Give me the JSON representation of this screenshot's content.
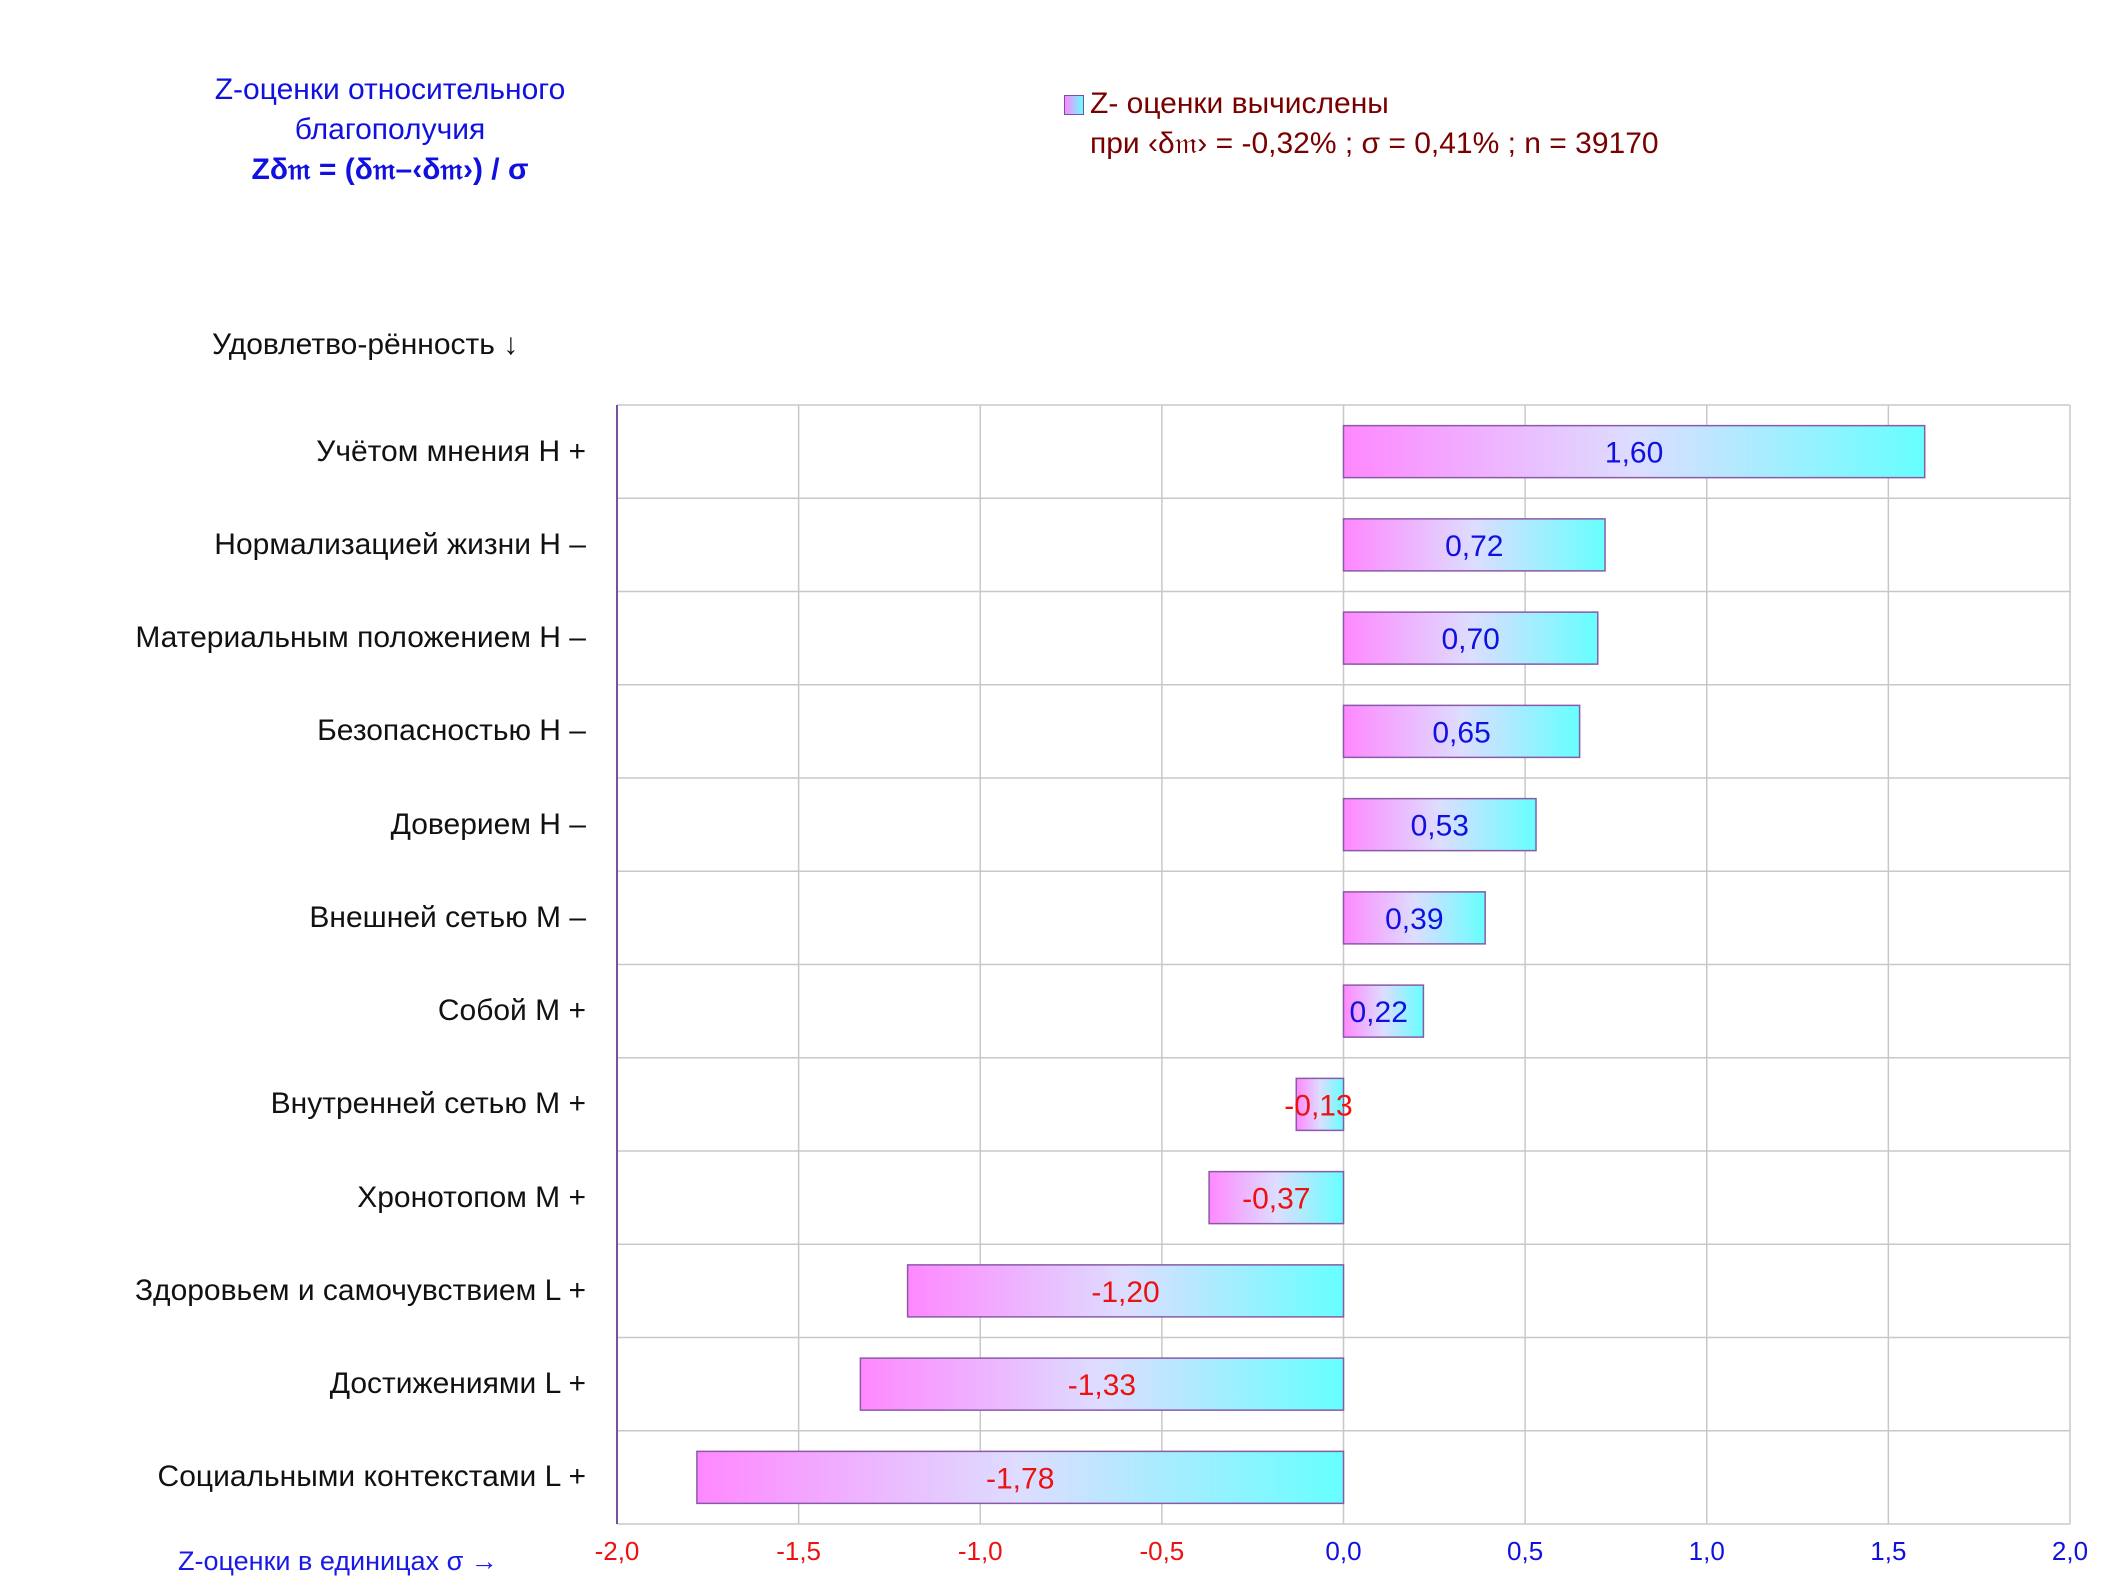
{
  "header": {
    "title_line1": "Z-оценки  относительного",
    "title_line2": "благополучия",
    "formula": "Zδ𝔪 = (δ𝔪–‹δ𝔪›)  / σ"
  },
  "legend": {
    "line1": "Z- оценки вычислены",
    "line2": "при ‹δ𝔪› = -0,32% ; σ = 0,41% ; n = 39170"
  },
  "chart_data": {
    "type": "bar",
    "orientation": "horizontal",
    "y_axis_title": "Удовлетво-рённость ↓",
    "x_axis_title": "Z-оценки в единицах σ →",
    "xlim": [
      -2.0,
      2.0
    ],
    "x_ticks": [
      "-2,0",
      "-1,5",
      "-1,0",
      "-0,5",
      "0,0",
      "0,5",
      "1,0",
      "1,5",
      "2,0"
    ],
    "x_tick_values": [
      -2.0,
      -1.5,
      -1.0,
      -0.5,
      0.0,
      0.5,
      1.0,
      1.5,
      2.0
    ],
    "grid": true,
    "categories": [
      "Учётом мнения  Н +",
      "Нормализацией жизни  Н –",
      "Материальным положением  Н –",
      "Безопасностью  Н –",
      "Доверием  Н –",
      "Внешней сетью  М –",
      "Собой  М +",
      "Внутренней сетью  М +",
      "Хронотопом  М +",
      "Здоровьем и самочувствием  L +",
      "Достижениями  L +",
      "Социальными контекстами  L +"
    ],
    "values": [
      1.6,
      0.72,
      0.7,
      0.65,
      0.53,
      0.39,
      0.22,
      -0.13,
      -0.37,
      -1.2,
      -1.33,
      -1.78
    ],
    "value_labels": [
      "1,60",
      "0,72",
      "0,70",
      "0,65",
      "0,53",
      "0,39",
      "0,22",
      "-0,13",
      "-0,37",
      "-1,20",
      "-1,33",
      "-1,78"
    ],
    "colors": {
      "bar_start": "#ff88ff",
      "bar_end": "#66ffff",
      "bar_border": "#8a5aa8",
      "positive_label": "#1010e0",
      "negative_label": "#ee1111",
      "grid": "#c8c8c8",
      "axis": "#7a4fa0"
    }
  }
}
